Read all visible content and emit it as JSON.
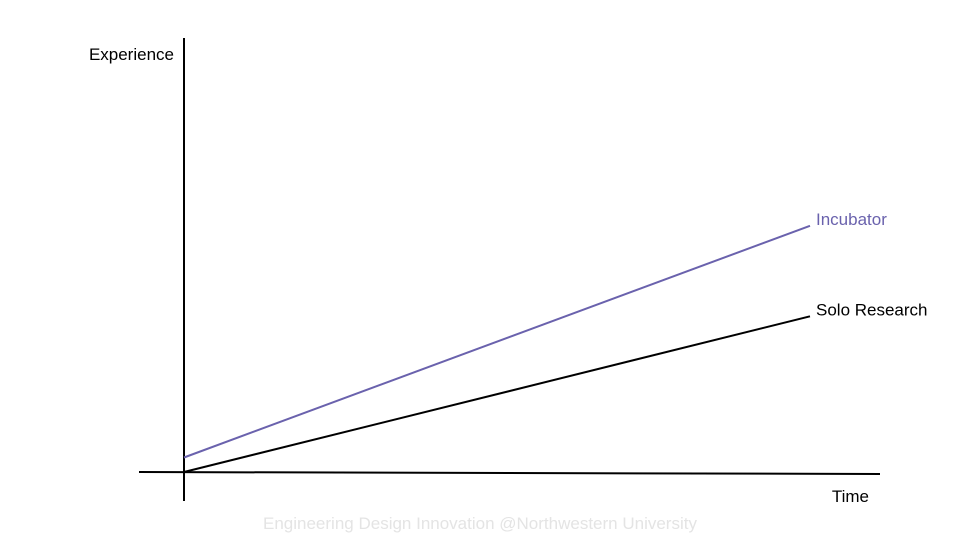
{
  "chart_data": {
    "type": "line",
    "title": "",
    "xlabel": "Time",
    "ylabel": "Experience",
    "xlim": [
      0,
      100
    ],
    "ylim": [
      0,
      100
    ],
    "grid": false,
    "legend": "inline-labels-at-line-ends",
    "series": [
      {
        "name": "Incubator",
        "color": "#6a62ad",
        "x": [
          0,
          100
        ],
        "y": [
          4,
          68
        ]
      },
      {
        "name": "Solo Research",
        "color": "#000000",
        "x": [
          0,
          100
        ],
        "y": [
          0,
          43
        ]
      }
    ]
  },
  "footer": {
    "text": "Engineering Design Innovation @Northwestern University"
  }
}
